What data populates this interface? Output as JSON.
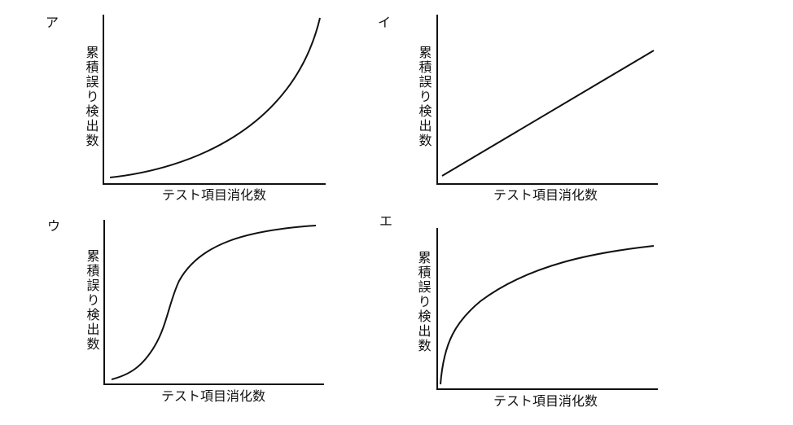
{
  "panels": [
    {
      "label": "ア",
      "y_label": "累積誤り検出数",
      "x_label": "テスト項目消化数"
    },
    {
      "label": "イ",
      "y_label": "累積誤り検出数",
      "x_label": "テスト項目消化数"
    },
    {
      "label": "ウ",
      "y_label": "累積誤り検出数",
      "x_label": "テスト項目消化数"
    },
    {
      "label": "エ",
      "y_label": "累積誤り検出数",
      "x_label": "テスト項目消化数"
    }
  ]
}
